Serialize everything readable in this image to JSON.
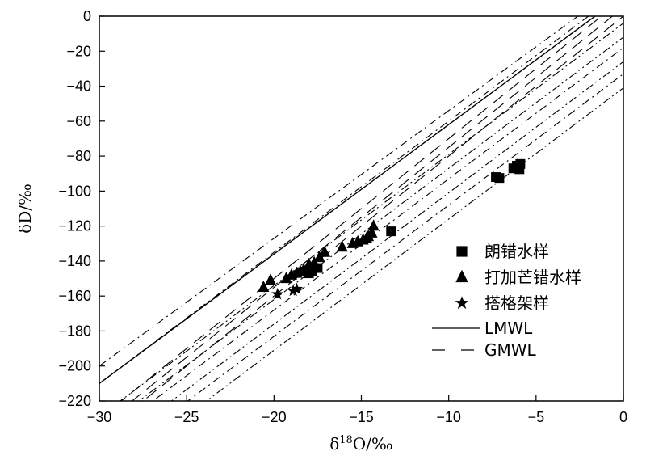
{
  "chart_data": {
    "type": "scatter",
    "xlabel": {
      "prefix": "δ",
      "sup": "18",
      "suffix": "O/‰"
    },
    "ylabel": "δD/‰",
    "xlim": [
      -30,
      0
    ],
    "ylim": [
      -220,
      0
    ],
    "xticks": [
      -30,
      -25,
      -20,
      -15,
      -10,
      -5,
      0
    ],
    "yticks": [
      0,
      -20,
      -40,
      -60,
      -80,
      -100,
      -120,
      -140,
      -160,
      -180,
      -200,
      -220
    ],
    "grid": false,
    "legend_position": "right",
    "series": [
      {
        "name": "朗错水样",
        "marker": "square",
        "points": [
          [
            -7.3,
            -92
          ],
          [
            -7.1,
            -92.5
          ],
          [
            -6.3,
            -87
          ],
          [
            -6.1,
            -85.5
          ],
          [
            -5.9,
            -84.5
          ],
          [
            -5.95,
            -87.5
          ],
          [
            -6.0,
            -86
          ],
          [
            -13.3,
            -123
          ],
          [
            -17.8,
            -146
          ],
          [
            -17.5,
            -144
          ],
          [
            -18.2,
            -146
          ],
          [
            -18.0,
            -147
          ]
        ]
      },
      {
        "name": "打加芒错水样",
        "marker": "triangle",
        "points": [
          [
            -20.6,
            -155
          ],
          [
            -20.2,
            -151
          ],
          [
            -19.3,
            -150
          ],
          [
            -19.0,
            -148
          ],
          [
            -18.7,
            -147
          ],
          [
            -18.5,
            -146
          ],
          [
            -18.3,
            -145
          ],
          [
            -18.0,
            -142
          ],
          [
            -17.7,
            -141
          ],
          [
            -17.4,
            -138
          ],
          [
            -17.1,
            -135
          ],
          [
            -16.1,
            -132
          ],
          [
            -15.5,
            -130
          ],
          [
            -15.2,
            -129
          ],
          [
            -14.9,
            -128
          ],
          [
            -14.6,
            -126
          ],
          [
            -14.4,
            -124
          ],
          [
            -14.3,
            -120
          ],
          [
            -14.7,
            -127
          ]
        ]
      },
      {
        "name": "搭格架样",
        "marker": "star",
        "points": [
          [
            -19.8,
            -159
          ],
          [
            -18.9,
            -157
          ],
          [
            -18.7,
            -156
          ]
        ]
      }
    ],
    "lines": [
      {
        "name": "LMWL",
        "style": "solid",
        "slope": 7.4,
        "intercept": 12
      },
      {
        "name": "GMWL",
        "style": "dash",
        "slope": 8,
        "intercept": 10
      }
    ],
    "extra_lines": [
      {
        "style": "dashdot",
        "slope": 7.5,
        "intercept": 15
      },
      {
        "style": "dashdot",
        "slope": 7.3,
        "intercept": 19
      },
      {
        "style": "dash",
        "slope": 8,
        "intercept": 5
      },
      {
        "style": "dash",
        "slope": 8,
        "intercept": 0
      },
      {
        "style": "dashdotdot",
        "slope": 7.5,
        "intercept": -4
      },
      {
        "style": "dashdotdot",
        "slope": 7.5,
        "intercept": -12
      },
      {
        "style": "dashdot",
        "slope": 7.5,
        "intercept": -18
      },
      {
        "style": "dashdotdot",
        "slope": 7.5,
        "intercept": -26
      },
      {
        "style": "dashdot",
        "slope": 7.5,
        "intercept": -33
      },
      {
        "style": "dashdotdot",
        "slope": 7.5,
        "intercept": -41
      }
    ]
  }
}
